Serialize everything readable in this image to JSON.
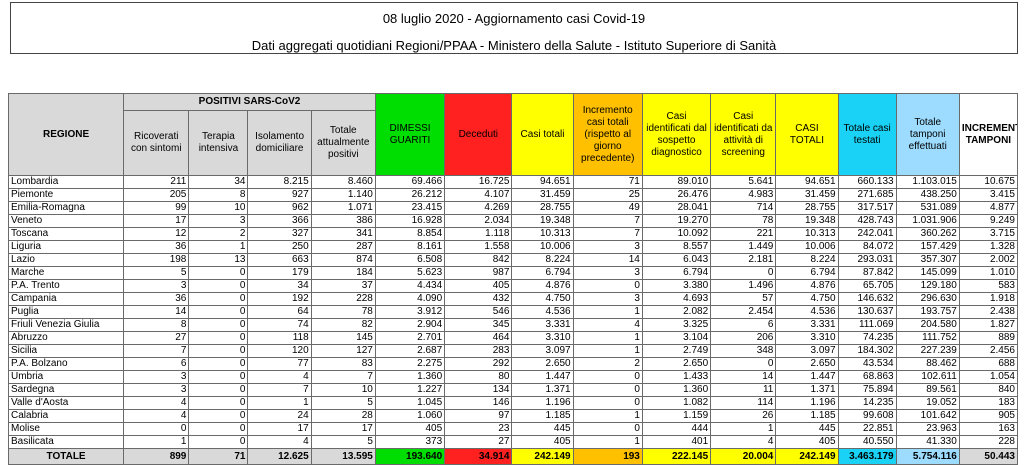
{
  "title": "08 luglio 2020 - Aggiornamento casi Covid-19",
  "subtitle": "Dati aggregati quotidiani Regioni/PPAA - Ministero della Salute - Istituto Superiore di Sanità",
  "colors": {
    "dimessi": "#00dd00",
    "deceduti": "#ff2020",
    "casi_totali": "#ffff00",
    "incremento": "#ffc000",
    "testati": "#19d2f5",
    "tamponi": "#9ddcff"
  },
  "headers": {
    "regione": "REGIONE",
    "positivi_group": "POSITIVI SARS-CoV2",
    "ricoverati": "Ricoverati con sintomi",
    "terapia": "Terapia intensiva",
    "isolamento": "Isolamento domiciliare",
    "totale_positivi": "Totale attualmente positivi",
    "dimessi": "DIMESSI GUARITI",
    "deceduti": "Deceduti",
    "casi_totali": "Casi totali",
    "incremento": "Incremento casi totali (rispetto al giorno precedente)",
    "sospetto": "Casi identificati dal sospetto diagnostico",
    "screening": "Casi identificati da attività di screening",
    "casi_totali2": "CASI TOTALI",
    "testati": "Totale casi testati",
    "tamponi": "Totale tamponi effettuati",
    "incremento_tamponi": "INCREMENTO TAMPONI"
  },
  "rows": [
    [
      "Lombardia",
      "211",
      "34",
      "8.215",
      "8.460",
      "69.466",
      "16.725",
      "94.651",
      "71",
      "89.010",
      "5.641",
      "94.651",
      "660.133",
      "1.103.015",
      "10.675"
    ],
    [
      "Piemonte",
      "205",
      "8",
      "927",
      "1.140",
      "26.212",
      "4.107",
      "31.459",
      "25",
      "26.476",
      "4.983",
      "31.459",
      "271.685",
      "438.250",
      "3.415"
    ],
    [
      "Emilia-Romagna",
      "99",
      "10",
      "962",
      "1.071",
      "23.415",
      "4.269",
      "28.755",
      "49",
      "28.041",
      "714",
      "28.755",
      "317.517",
      "531.089",
      "4.877"
    ],
    [
      "Veneto",
      "17",
      "3",
      "366",
      "386",
      "16.928",
      "2.034",
      "19.348",
      "7",
      "19.270",
      "78",
      "19.348",
      "428.743",
      "1.031.906",
      "9.249"
    ],
    [
      "Toscana",
      "12",
      "2",
      "327",
      "341",
      "8.854",
      "1.118",
      "10.313",
      "7",
      "10.092",
      "221",
      "10.313",
      "242.041",
      "360.262",
      "3.715"
    ],
    [
      "Liguria",
      "36",
      "1",
      "250",
      "287",
      "8.161",
      "1.558",
      "10.006",
      "3",
      "8.557",
      "1.449",
      "10.006",
      "84.072",
      "157.429",
      "1.328"
    ],
    [
      "Lazio",
      "198",
      "13",
      "663",
      "874",
      "6.508",
      "842",
      "8.224",
      "14",
      "6.043",
      "2.181",
      "8.224",
      "293.031",
      "357.307",
      "2.002"
    ],
    [
      "Marche",
      "5",
      "0",
      "179",
      "184",
      "5.623",
      "987",
      "6.794",
      "3",
      "6.794",
      "0",
      "6.794",
      "87.842",
      "145.099",
      "1.010"
    ],
    [
      "P.A. Trento",
      "3",
      "0",
      "34",
      "37",
      "4.434",
      "405",
      "4.876",
      "0",
      "3.380",
      "1.496",
      "4.876",
      "65.705",
      "129.180",
      "583"
    ],
    [
      "Campania",
      "36",
      "0",
      "192",
      "228",
      "4.090",
      "432",
      "4.750",
      "3",
      "4.693",
      "57",
      "4.750",
      "146.632",
      "296.630",
      "1.918"
    ],
    [
      "Puglia",
      "14",
      "0",
      "64",
      "78",
      "3.912",
      "546",
      "4.536",
      "1",
      "2.082",
      "2.454",
      "4.536",
      "130.637",
      "193.757",
      "2.438"
    ],
    [
      "Friuli Venezia Giulia",
      "8",
      "0",
      "74",
      "82",
      "2.904",
      "345",
      "3.331",
      "4",
      "3.325",
      "6",
      "3.331",
      "111.069",
      "204.580",
      "1.827"
    ],
    [
      "Abruzzo",
      "27",
      "0",
      "118",
      "145",
      "2.701",
      "464",
      "3.310",
      "1",
      "3.104",
      "206",
      "3.310",
      "74.235",
      "111.752",
      "889"
    ],
    [
      "Sicilia",
      "7",
      "0",
      "120",
      "127",
      "2.687",
      "283",
      "3.097",
      "1",
      "2.749",
      "348",
      "3.097",
      "184.302",
      "227.239",
      "2.456"
    ],
    [
      "P.A. Bolzano",
      "6",
      "0",
      "77",
      "83",
      "2.275",
      "292",
      "2.650",
      "2",
      "2.650",
      "0",
      "2.650",
      "43.534",
      "88.462",
      "688"
    ],
    [
      "Umbria",
      "3",
      "0",
      "4",
      "7",
      "1.360",
      "80",
      "1.447",
      "0",
      "1.433",
      "14",
      "1.447",
      "68.863",
      "102.611",
      "1.054"
    ],
    [
      "Sardegna",
      "3",
      "0",
      "7",
      "10",
      "1.227",
      "134",
      "1.371",
      "0",
      "1.360",
      "11",
      "1.371",
      "75.894",
      "89.561",
      "840"
    ],
    [
      "Valle d'Aosta",
      "4",
      "0",
      "1",
      "5",
      "1.045",
      "146",
      "1.196",
      "0",
      "1.082",
      "114",
      "1.196",
      "14.235",
      "19.052",
      "183"
    ],
    [
      "Calabria",
      "4",
      "0",
      "24",
      "28",
      "1.060",
      "97",
      "1.185",
      "1",
      "1.159",
      "26",
      "1.185",
      "99.608",
      "101.642",
      "905"
    ],
    [
      "Molise",
      "0",
      "0",
      "17",
      "17",
      "405",
      "23",
      "445",
      "0",
      "444",
      "1",
      "445",
      "22.851",
      "23.963",
      "163"
    ],
    [
      "Basilicata",
      "1",
      "0",
      "4",
      "5",
      "373",
      "27",
      "405",
      "1",
      "401",
      "4",
      "405",
      "40.550",
      "41.330",
      "228"
    ]
  ],
  "total": [
    "TOTALE",
    "899",
    "71",
    "12.625",
    "13.595",
    "193.640",
    "34.914",
    "242.149",
    "193",
    "222.145",
    "20.004",
    "242.149",
    "3.463.179",
    "5.754.116",
    "50.443"
  ]
}
